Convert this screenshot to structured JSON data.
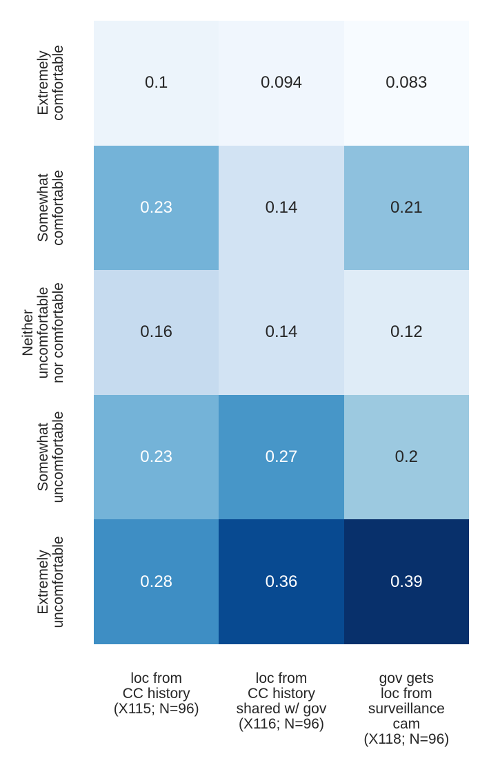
{
  "chart_data": {
    "type": "heatmap",
    "title": "",
    "xlabel": "",
    "ylabel": "",
    "colormap": "Blues",
    "vmin": 0.083,
    "vmax": 0.39,
    "legend": "none",
    "grid": false,
    "y_categories": [
      "Extremely comfortable",
      "Somewhat comfortable",
      "Neither uncomfortable nor comfortable",
      "Somewhat uncomfortable",
      "Extremely uncomfortable"
    ],
    "x_categories": [
      "loc from CC history (X115; N=96)",
      "loc from CC history shared w/ gov (X116; N=96)",
      "gov gets loc from surveillance cam (X118; N=96)"
    ],
    "y_tick_display": [
      "Extremely\ncomfortable",
      "Somewhat\ncomfortable",
      "Neither\nuncomfortable\nnor comfortable",
      "Somewhat\nuncomfortable",
      "Extremely\nuncomfortable"
    ],
    "x_tick_display": [
      "loc from\nCC history\n(X115; N=96)",
      "loc from\nCC history\nshared w/ gov\n(X116; N=96)",
      "gov gets\nloc from\nsurveillance\ncam\n(X118; N=96)"
    ],
    "values": [
      [
        0.1,
        0.094,
        0.083
      ],
      [
        0.23,
        0.14,
        0.21
      ],
      [
        0.16,
        0.14,
        0.12
      ],
      [
        0.23,
        0.27,
        0.2
      ],
      [
        0.28,
        0.36,
        0.39
      ]
    ],
    "cell_labels": [
      [
        "0.1",
        "0.094",
        "0.083"
      ],
      [
        "0.23",
        "0.14",
        "0.21"
      ],
      [
        "0.16",
        "0.14",
        "0.12"
      ],
      [
        "0.23",
        "0.27",
        "0.2"
      ],
      [
        "0.28",
        "0.36",
        "0.39"
      ]
    ],
    "cell_colors": [
      [
        "#ecf4fb",
        "#f0f6fd",
        "#f7fbff"
      ],
      [
        "#74b3d8",
        "#d2e3f3",
        "#8ec1de"
      ],
      [
        "#c6dbef",
        "#d2e3f3",
        "#dfecf7"
      ],
      [
        "#74b3d8",
        "#4796c8",
        "#9cc9e0"
      ],
      [
        "#3e8ec4",
        "#084a91",
        "#08306b"
      ]
    ],
    "cell_text_colors": [
      [
        "#262626",
        "#262626",
        "#262626"
      ],
      [
        "#ffffff",
        "#262626",
        "#262626"
      ],
      [
        "#262626",
        "#262626",
        "#262626"
      ],
      [
        "#ffffff",
        "#ffffff",
        "#262626"
      ],
      [
        "#ffffff",
        "#ffffff",
        "#ffffff"
      ]
    ],
    "tick_color": "#262626"
  }
}
